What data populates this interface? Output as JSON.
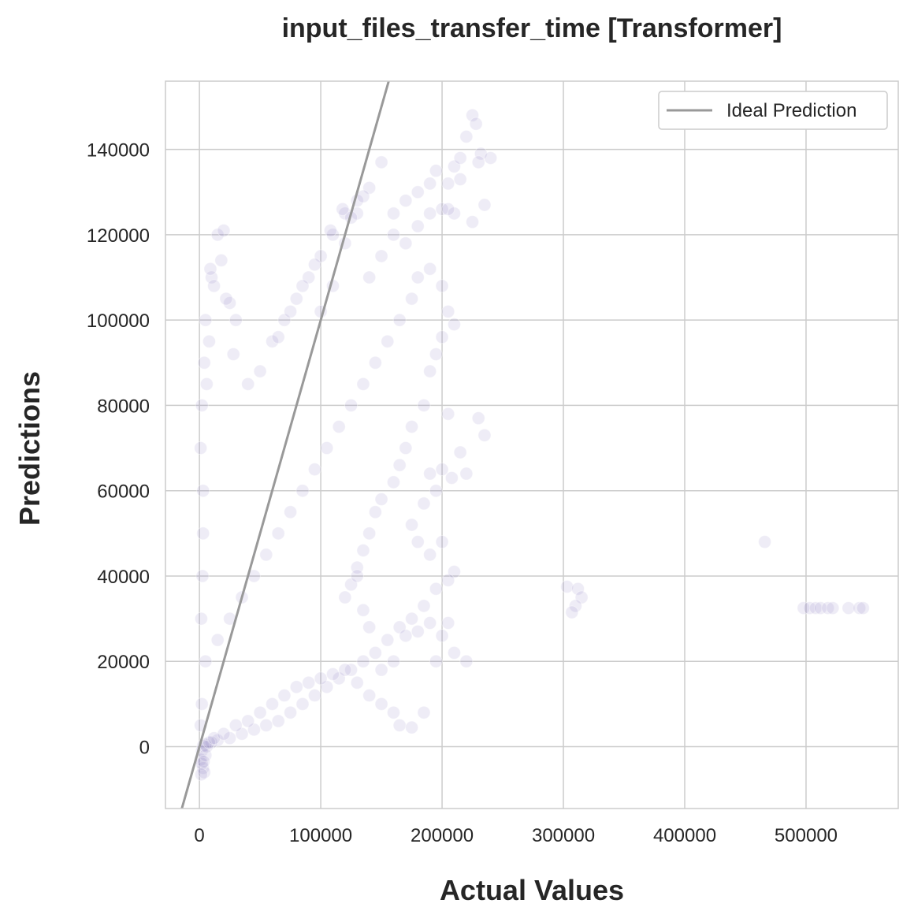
{
  "chart_data": {
    "type": "scatter",
    "title": "input_files_transfer_time [Transformer]",
    "xlabel": "Actual Values",
    "ylabel": "Predictions",
    "xlim": [
      -28000,
      576000
    ],
    "ylim": [
      -14500,
      156000
    ],
    "xticks": [
      0,
      100000,
      200000,
      300000,
      400000,
      500000
    ],
    "yticks": [
      0,
      20000,
      40000,
      60000,
      80000,
      100000,
      120000,
      140000
    ],
    "grid": true,
    "legend": {
      "position": "top-right",
      "entries": [
        {
          "label": "Ideal Prediction",
          "color": "#999999"
        }
      ]
    },
    "ideal_line": {
      "label": "Ideal Prediction",
      "slope": 1,
      "intercept": 0,
      "color": "#999999"
    },
    "point_color": "#8c7fc0",
    "point_alpha": 0.15,
    "series": [
      {
        "points": [
          [
            120000,
            118000
          ],
          [
            130000,
            125000
          ],
          [
            110000,
            108000
          ],
          [
            100000,
            102000
          ],
          [
            140000,
            110000
          ],
          [
            150000,
            115000
          ],
          [
            160000,
            120000
          ],
          [
            170000,
            118000
          ],
          [
            180000,
            122000
          ],
          [
            190000,
            125000
          ],
          [
            175000,
            105000
          ],
          [
            165000,
            100000
          ],
          [
            155000,
            95000
          ],
          [
            145000,
            90000
          ],
          [
            135000,
            85000
          ],
          [
            125000,
            80000
          ],
          [
            115000,
            75000
          ],
          [
            105000,
            70000
          ],
          [
            95000,
            65000
          ],
          [
            85000,
            60000
          ],
          [
            75000,
            55000
          ],
          [
            65000,
            50000
          ],
          [
            55000,
            45000
          ],
          [
            45000,
            40000
          ],
          [
            35000,
            35000
          ],
          [
            25000,
            30000
          ],
          [
            15000,
            25000
          ],
          [
            5000,
            20000
          ],
          [
            2000,
            10000
          ],
          [
            1000,
            5000
          ],
          [
            3000,
            60000
          ],
          [
            2000,
            80000
          ],
          [
            4000,
            90000
          ],
          [
            1000,
            70000
          ],
          [
            2500,
            40000
          ],
          [
            5000,
            100000
          ],
          [
            8000,
            95000
          ],
          [
            6000,
            85000
          ],
          [
            3000,
            50000
          ],
          [
            1500,
            30000
          ],
          [
            10000,
            110000
          ],
          [
            15000,
            120000
          ],
          [
            20000,
            121000
          ],
          [
            25000,
            104000
          ],
          [
            30000,
            100000
          ],
          [
            28000,
            92000
          ],
          [
            22000,
            105000
          ],
          [
            12000,
            108000
          ],
          [
            18000,
            114000
          ],
          [
            9000,
            112000
          ],
          [
            40000,
            85000
          ],
          [
            50000,
            88000
          ],
          [
            60000,
            95000
          ],
          [
            70000,
            100000
          ],
          [
            80000,
            105000
          ],
          [
            90000,
            110000
          ],
          [
            100000,
            115000
          ],
          [
            110000,
            120000
          ],
          [
            120000,
            125000
          ],
          [
            130000,
            128000
          ],
          [
            150000,
            137000
          ],
          [
            140000,
            131000
          ],
          [
            135000,
            129000
          ],
          [
            125000,
            124000
          ],
          [
            118000,
            126000
          ],
          [
            108000,
            121000
          ],
          [
            95000,
            113000
          ],
          [
            85000,
            108000
          ],
          [
            75000,
            102000
          ],
          [
            65000,
            96000
          ],
          [
            160000,
            125000
          ],
          [
            170000,
            128000
          ],
          [
            180000,
            130000
          ],
          [
            190000,
            132000
          ],
          [
            195000,
            135000
          ],
          [
            200000,
            126000
          ],
          [
            205000,
            132000
          ],
          [
            210000,
            136000
          ],
          [
            215000,
            138000
          ],
          [
            220000,
            143000
          ],
          [
            225000,
            148000
          ],
          [
            228000,
            146000
          ],
          [
            232000,
            139000
          ],
          [
            240000,
            138000
          ],
          [
            235000,
            127000
          ],
          [
            225000,
            123000
          ],
          [
            210000,
            125000
          ],
          [
            205000,
            126000
          ],
          [
            215000,
            133000
          ],
          [
            230000,
            137000
          ],
          [
            180000,
            110000
          ],
          [
            190000,
            112000
          ],
          [
            200000,
            108000
          ],
          [
            205000,
            102000
          ],
          [
            210000,
            99000
          ],
          [
            200000,
            96000
          ],
          [
            195000,
            92000
          ],
          [
            190000,
            88000
          ],
          [
            185000,
            80000
          ],
          [
            175000,
            75000
          ],
          [
            170000,
            70000
          ],
          [
            165000,
            66000
          ],
          [
            160000,
            62000
          ],
          [
            150000,
            58000
          ],
          [
            145000,
            55000
          ],
          [
            140000,
            50000
          ],
          [
            135000,
            46000
          ],
          [
            130000,
            42000
          ],
          [
            125000,
            38000
          ],
          [
            120000,
            35000
          ],
          [
            205000,
            78000
          ],
          [
            230000,
            77000
          ],
          [
            235000,
            73000
          ],
          [
            215000,
            69000
          ],
          [
            200000,
            65000
          ],
          [
            190000,
            64000
          ],
          [
            208000,
            63000
          ],
          [
            220000,
            64000
          ],
          [
            195000,
            60000
          ],
          [
            185000,
            57000
          ],
          [
            175000,
            52000
          ],
          [
            180000,
            48000
          ],
          [
            190000,
            45000
          ],
          [
            200000,
            48000
          ],
          [
            210000,
            41000
          ],
          [
            205000,
            39000
          ],
          [
            195000,
            37000
          ],
          [
            185000,
            33000
          ],
          [
            175000,
            30000
          ],
          [
            165000,
            28000
          ],
          [
            155000,
            25000
          ],
          [
            145000,
            22000
          ],
          [
            135000,
            20000
          ],
          [
            125000,
            18000
          ],
          [
            115000,
            16000
          ],
          [
            105000,
            14000
          ],
          [
            95000,
            12000
          ],
          [
            85000,
            10000
          ],
          [
            75000,
            8000
          ],
          [
            65000,
            6000
          ],
          [
            55000,
            5000
          ],
          [
            45000,
            4000
          ],
          [
            35000,
            3000
          ],
          [
            25000,
            2000
          ],
          [
            15000,
            1500
          ],
          [
            10000,
            1000
          ],
          [
            5000,
            500
          ],
          [
            3000,
            200
          ],
          [
            2000,
            -1000
          ],
          [
            1000,
            -3000
          ],
          [
            3000,
            -5000
          ],
          [
            4000,
            -6000
          ],
          [
            2000,
            -4000
          ],
          [
            5000,
            -2000
          ],
          [
            1500,
            -6500
          ],
          [
            3500,
            -3500
          ],
          [
            6000,
            0
          ],
          [
            8000,
            1000
          ],
          [
            12000,
            2000
          ],
          [
            20000,
            3000
          ],
          [
            30000,
            5000
          ],
          [
            40000,
            6000
          ],
          [
            50000,
            8000
          ],
          [
            60000,
            10000
          ],
          [
            70000,
            12000
          ],
          [
            80000,
            14000
          ],
          [
            90000,
            15000
          ],
          [
            100000,
            16000
          ],
          [
            110000,
            17000
          ],
          [
            120000,
            18000
          ],
          [
            130000,
            15000
          ],
          [
            140000,
            12000
          ],
          [
            150000,
            10000
          ],
          [
            160000,
            8000
          ],
          [
            165000,
            5000
          ],
          [
            175000,
            4500
          ],
          [
            185000,
            8000
          ],
          [
            195000,
            20000
          ],
          [
            210000,
            22000
          ],
          [
            220000,
            20000
          ],
          [
            205000,
            29000
          ],
          [
            200000,
            26000
          ],
          [
            190000,
            29000
          ],
          [
            180000,
            27000
          ],
          [
            170000,
            26000
          ],
          [
            160000,
            20000
          ],
          [
            150000,
            18000
          ],
          [
            140000,
            28000
          ],
          [
            135000,
            32000
          ],
          [
            130000,
            40000
          ],
          [
            303000,
            37500
          ],
          [
            312000,
            37000
          ],
          [
            315000,
            35000
          ],
          [
            310000,
            33000
          ],
          [
            307000,
            31500
          ],
          [
            466000,
            48000
          ],
          [
            498000,
            32500
          ],
          [
            503000,
            32500
          ],
          [
            508000,
            32500
          ],
          [
            512000,
            32500
          ],
          [
            518000,
            32500
          ],
          [
            522000,
            32500
          ],
          [
            535000,
            32500
          ],
          [
            544000,
            32500
          ],
          [
            547000,
            32500
          ]
        ]
      }
    ]
  }
}
